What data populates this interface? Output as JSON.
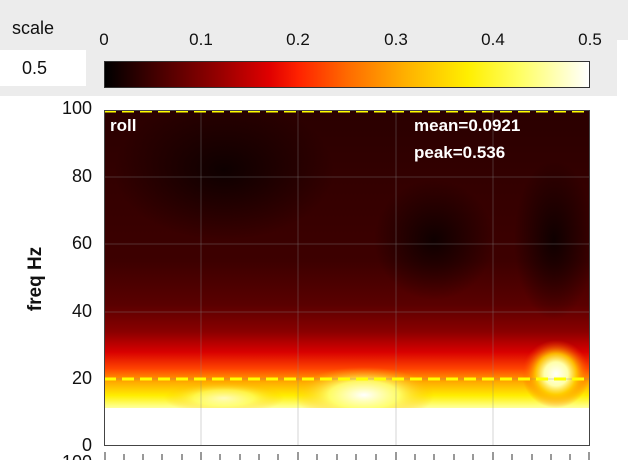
{
  "scale": {
    "label": "scale",
    "value": "0.5"
  },
  "colorbar": {
    "ticks": [
      "0",
      "0.1",
      "0.2",
      "0.3",
      "0.4",
      "0.5"
    ],
    "range": [
      0,
      0.5
    ],
    "colormap": "hot"
  },
  "plot": {
    "channel_label": "roll",
    "mean_text": "mean=0.0921",
    "peak_text": "peak=0.536",
    "ylabel": "freq Hz",
    "yticks": [
      "100",
      "80",
      "60",
      "40",
      "20",
      "0"
    ],
    "partial_tick": "100",
    "ylim": [
      0,
      100
    ],
    "reference_lines_hz": [
      100,
      20
    ],
    "reference_line_color": "#ffff00"
  }
}
